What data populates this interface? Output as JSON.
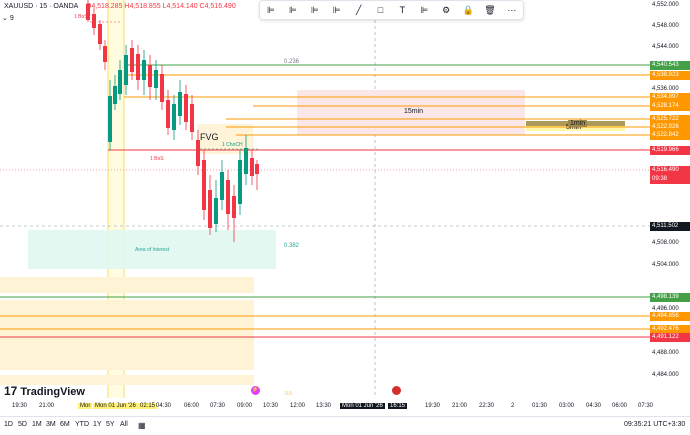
{
  "header": {
    "symbol": "XAUUSD · 15 · OANDA",
    "ohlc": "O4,518.285 H4,518.855 L4,514.140 C4,516.490",
    "sub_count": "9"
  },
  "toolbar": {
    "icons": [
      "align-icon",
      "align-icon-2",
      "align-icon-3",
      "align-icon-4",
      "pen-icon",
      "square-icon",
      "pin-icon",
      "align-icon-5",
      "gear-icon",
      "lock-icon",
      "trash-icon",
      "more-icon"
    ]
  },
  "annotations": {
    "level_0236": "0.236",
    "level_0382": "0.382",
    "fvg": "FVG",
    "tf_15min": "15min",
    "tf_1min": "1min",
    "tf_5min": "5min",
    "area_interest": "Area of Interest",
    "bos1": "1 BoS",
    "bos2": "1 BoS",
    "choch": "1 ChoCH",
    "zero_five": "0.5"
  },
  "price_axis": {
    "labels": [
      "4,552.000",
      "4,548.000",
      "4,544.000",
      "4,536.000",
      "4,508.000",
      "4,504.000",
      "4,496.000",
      "4,488.000",
      "4,484.000"
    ],
    "tags": [
      {
        "text": "4,540.543",
        "color": "#43a047"
      },
      {
        "text": "4,538.923",
        "color": "#ff9800"
      },
      {
        "text": "4,534.897",
        "color": "#ff9800"
      },
      {
        "text": "4,528.174",
        "color": "#ff9800"
      },
      {
        "text": "4,525.722",
        "color": "#ff9800"
      },
      {
        "text": "4,522.926",
        "color": "#ff9800"
      },
      {
        "text": "4,522.842",
        "color": "#ff9800"
      },
      {
        "text": "4,519.966",
        "color": "#f23645"
      },
      {
        "text": "4,516.490",
        "color": "#f23645"
      },
      {
        "text": "09:38",
        "color": "#f23645"
      },
      {
        "text": "4,511.502",
        "color": "#131722"
      },
      {
        "text": "4,498.139",
        "color": "#43a047"
      },
      {
        "text": "4,494.856",
        "color": "#ff9800"
      },
      {
        "text": "4,492.476",
        "color": "#ff9800"
      },
      {
        "text": "4,491.122",
        "color": "#f23645"
      }
    ]
  },
  "time_axis": {
    "labels": [
      "19:30",
      "21:00",
      "Mor",
      "Mon 01 Jun '26",
      "02:15",
      "04:30",
      "06:00",
      "07:30",
      "09:00",
      "10:30",
      "12:00",
      "13:30",
      "Mon 01 Jun '26",
      "16:15",
      "19:30",
      "21:00",
      "22:30",
      "2",
      "01:30",
      "03:00",
      "04:30",
      "06:00",
      "07:30"
    ]
  },
  "bottom_bar": {
    "ranges": [
      "1D",
      "5D",
      "1M",
      "3M",
      "6M",
      "YTD",
      "1Y",
      "5Y",
      "All"
    ],
    "clock": "09:35:21 UTC+3:30"
  },
  "brand": {
    "logo_text": "TradingView"
  },
  "colors": {
    "bull": "#089981",
    "bear": "#f23645",
    "orange": "#ff9800",
    "green": "#43a047",
    "red": "#f23645"
  }
}
